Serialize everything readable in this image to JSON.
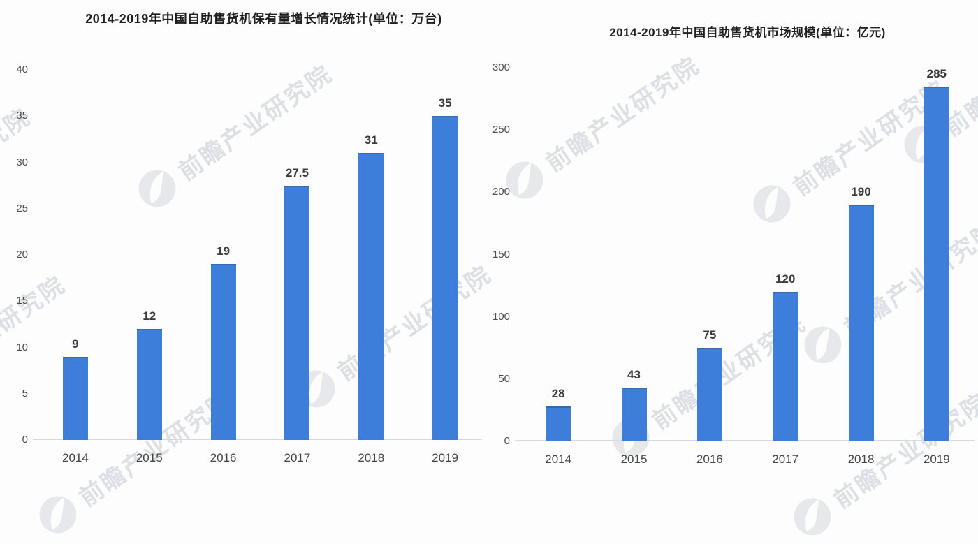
{
  "page": {
    "background": "#fdfdfd"
  },
  "watermark": {
    "text": "前瞻产业研究院",
    "logo_icon": "qianzhan-circle-logo",
    "text_color": "#dcdfe4",
    "logo_color": "#e2e5ea"
  },
  "chart_data": [
    {
      "type": "bar",
      "title": "2014-2019年中国自助售货机保有量增长情况统计(单位：万台)",
      "categories": [
        "2014",
        "2015",
        "2016",
        "2017",
        "2018",
        "2019"
      ],
      "values": [
        9,
        12,
        19,
        27.5,
        31,
        35
      ],
      "value_labels": [
        "9",
        "12",
        "19",
        "27.5",
        "31",
        "35"
      ],
      "xlabel": "",
      "ylabel": "",
      "ylim": [
        0,
        40
      ],
      "ytick_step": 5,
      "grid": false,
      "legend": "none",
      "bar_color": "#3d7edb"
    },
    {
      "type": "bar",
      "title": "2014-2019年中国自助售货机市场规模(单位：亿元)",
      "categories": [
        "2014",
        "2015",
        "2016",
        "2017",
        "2018",
        "2019"
      ],
      "values": [
        28,
        43,
        75,
        120,
        190,
        285
      ],
      "value_labels": [
        "28",
        "43",
        "75",
        "120",
        "190",
        "285"
      ],
      "xlabel": "",
      "ylabel": "",
      "ylim": [
        0,
        300
      ],
      "ytick_step": 50,
      "grid": false,
      "legend": "none",
      "bar_color": "#3d7edb"
    }
  ]
}
